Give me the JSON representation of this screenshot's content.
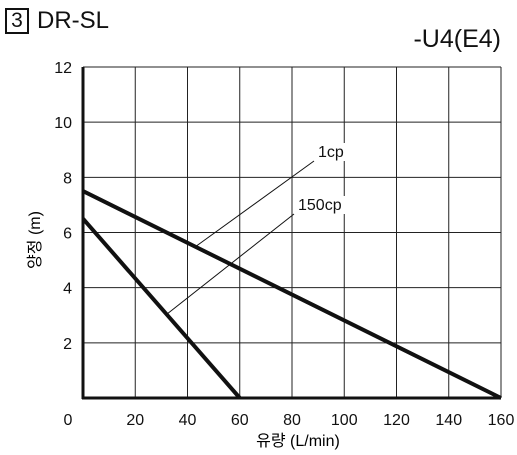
{
  "figure": {
    "number": "3",
    "title": "DR-SL",
    "model": "-U4(E4)"
  },
  "chart_data": {
    "type": "line",
    "xlabel": "유량 (L/min)",
    "ylabel": "양정 (m)",
    "xlim": [
      0,
      160
    ],
    "ylim": [
      0,
      12
    ],
    "x_ticks": [
      "0",
      "20",
      "40",
      "60",
      "80",
      "100",
      "120",
      "140",
      "160"
    ],
    "y_ticks": [
      "2",
      "4",
      "6",
      "8",
      "10",
      "12"
    ],
    "grid": true,
    "series": [
      {
        "name": "1cp",
        "points": [
          [
            0,
            7.5
          ],
          [
            160,
            0
          ]
        ]
      },
      {
        "name": "150cp",
        "points": [
          [
            0,
            6.5
          ],
          [
            60,
            0
          ]
        ]
      }
    ],
    "annotations": [
      {
        "text": "1cp",
        "series": "1cp"
      },
      {
        "text": "150cp",
        "series": "150cp"
      }
    ]
  }
}
